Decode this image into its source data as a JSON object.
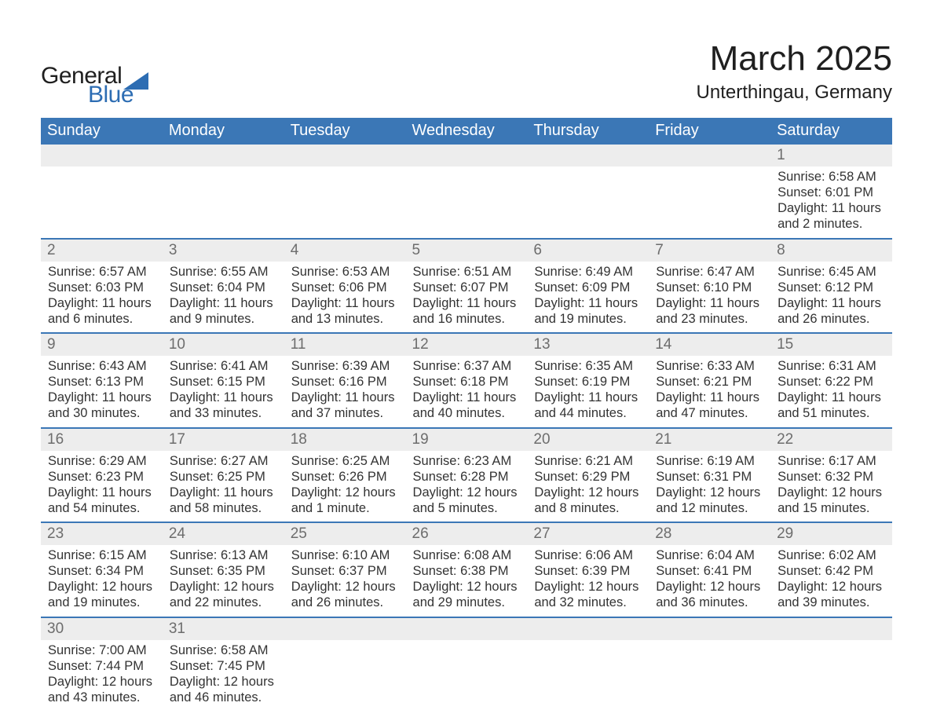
{
  "brand": {
    "general": "General",
    "blue": "Blue",
    "triangle_color": "#2d6db3"
  },
  "title": {
    "month": "March 2025",
    "location": "Unterthingau, Germany"
  },
  "colors": {
    "header_bg": "#3b77b6",
    "header_text": "#ffffff",
    "row_divider": "#3b77b6",
    "daynum_bg": "#ededed",
    "daynum_text": "#6d6d6d",
    "body_text": "#333333",
    "page_bg": "#ffffff"
  },
  "weekdays": [
    "Sunday",
    "Monday",
    "Tuesday",
    "Wednesday",
    "Thursday",
    "Friday",
    "Saturday"
  ],
  "grid": {
    "rows": 6,
    "cols": 7,
    "first_day_col": 6,
    "days": [
      {
        "n": 1,
        "sunrise": "6:58 AM",
        "sunset": "6:01 PM",
        "daylight": "11 hours and 2 minutes."
      },
      {
        "n": 2,
        "sunrise": "6:57 AM",
        "sunset": "6:03 PM",
        "daylight": "11 hours and 6 minutes."
      },
      {
        "n": 3,
        "sunrise": "6:55 AM",
        "sunset": "6:04 PM",
        "daylight": "11 hours and 9 minutes."
      },
      {
        "n": 4,
        "sunrise": "6:53 AM",
        "sunset": "6:06 PM",
        "daylight": "11 hours and 13 minutes."
      },
      {
        "n": 5,
        "sunrise": "6:51 AM",
        "sunset": "6:07 PM",
        "daylight": "11 hours and 16 minutes."
      },
      {
        "n": 6,
        "sunrise": "6:49 AM",
        "sunset": "6:09 PM",
        "daylight": "11 hours and 19 minutes."
      },
      {
        "n": 7,
        "sunrise": "6:47 AM",
        "sunset": "6:10 PM",
        "daylight": "11 hours and 23 minutes."
      },
      {
        "n": 8,
        "sunrise": "6:45 AM",
        "sunset": "6:12 PM",
        "daylight": "11 hours and 26 minutes."
      },
      {
        "n": 9,
        "sunrise": "6:43 AM",
        "sunset": "6:13 PM",
        "daylight": "11 hours and 30 minutes."
      },
      {
        "n": 10,
        "sunrise": "6:41 AM",
        "sunset": "6:15 PM",
        "daylight": "11 hours and 33 minutes."
      },
      {
        "n": 11,
        "sunrise": "6:39 AM",
        "sunset": "6:16 PM",
        "daylight": "11 hours and 37 minutes."
      },
      {
        "n": 12,
        "sunrise": "6:37 AM",
        "sunset": "6:18 PM",
        "daylight": "11 hours and 40 minutes."
      },
      {
        "n": 13,
        "sunrise": "6:35 AM",
        "sunset": "6:19 PM",
        "daylight": "11 hours and 44 minutes."
      },
      {
        "n": 14,
        "sunrise": "6:33 AM",
        "sunset": "6:21 PM",
        "daylight": "11 hours and 47 minutes."
      },
      {
        "n": 15,
        "sunrise": "6:31 AM",
        "sunset": "6:22 PM",
        "daylight": "11 hours and 51 minutes."
      },
      {
        "n": 16,
        "sunrise": "6:29 AM",
        "sunset": "6:23 PM",
        "daylight": "11 hours and 54 minutes."
      },
      {
        "n": 17,
        "sunrise": "6:27 AM",
        "sunset": "6:25 PM",
        "daylight": "11 hours and 58 minutes."
      },
      {
        "n": 18,
        "sunrise": "6:25 AM",
        "sunset": "6:26 PM",
        "daylight": "12 hours and 1 minute."
      },
      {
        "n": 19,
        "sunrise": "6:23 AM",
        "sunset": "6:28 PM",
        "daylight": "12 hours and 5 minutes."
      },
      {
        "n": 20,
        "sunrise": "6:21 AM",
        "sunset": "6:29 PM",
        "daylight": "12 hours and 8 minutes."
      },
      {
        "n": 21,
        "sunrise": "6:19 AM",
        "sunset": "6:31 PM",
        "daylight": "12 hours and 12 minutes."
      },
      {
        "n": 22,
        "sunrise": "6:17 AM",
        "sunset": "6:32 PM",
        "daylight": "12 hours and 15 minutes."
      },
      {
        "n": 23,
        "sunrise": "6:15 AM",
        "sunset": "6:34 PM",
        "daylight": "12 hours and 19 minutes."
      },
      {
        "n": 24,
        "sunrise": "6:13 AM",
        "sunset": "6:35 PM",
        "daylight": "12 hours and 22 minutes."
      },
      {
        "n": 25,
        "sunrise": "6:10 AM",
        "sunset": "6:37 PM",
        "daylight": "12 hours and 26 minutes."
      },
      {
        "n": 26,
        "sunrise": "6:08 AM",
        "sunset": "6:38 PM",
        "daylight": "12 hours and 29 minutes."
      },
      {
        "n": 27,
        "sunrise": "6:06 AM",
        "sunset": "6:39 PM",
        "daylight": "12 hours and 32 minutes."
      },
      {
        "n": 28,
        "sunrise": "6:04 AM",
        "sunset": "6:41 PM",
        "daylight": "12 hours and 36 minutes."
      },
      {
        "n": 29,
        "sunrise": "6:02 AM",
        "sunset": "6:42 PM",
        "daylight": "12 hours and 39 minutes."
      },
      {
        "n": 30,
        "sunrise": "7:00 AM",
        "sunset": "7:44 PM",
        "daylight": "12 hours and 43 minutes."
      },
      {
        "n": 31,
        "sunrise": "6:58 AM",
        "sunset": "7:45 PM",
        "daylight": "12 hours and 46 minutes."
      }
    ]
  },
  "labels": {
    "sunrise_prefix": "Sunrise: ",
    "sunset_prefix": "Sunset: ",
    "daylight_prefix": "Daylight: "
  }
}
